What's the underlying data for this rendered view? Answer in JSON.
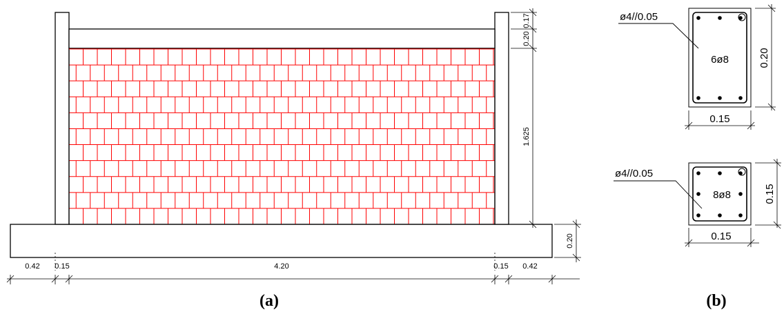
{
  "wall": {
    "dims_bottom": [
      "0.42",
      "0.15",
      "4.20",
      "0.15",
      "0.42"
    ],
    "dim_footing_height": "0.20",
    "dim_infill_height": "1.625",
    "dim_beam_height": "0.20",
    "dim_beam_top": "0.17"
  },
  "beam_section": {
    "stirrup_label": "ø4//0.05",
    "bars_label": "6ø8",
    "width_label": "0.15",
    "height_label": "0.20"
  },
  "column_section": {
    "stirrup_label": "ø4//0.05",
    "bars_label": "8ø8",
    "width_label": "0.15",
    "height_label": "0.15"
  },
  "captions": {
    "a": "(a)",
    "b": "(b)"
  },
  "colors": {
    "line": "#000000",
    "brick": "#ff0000"
  }
}
